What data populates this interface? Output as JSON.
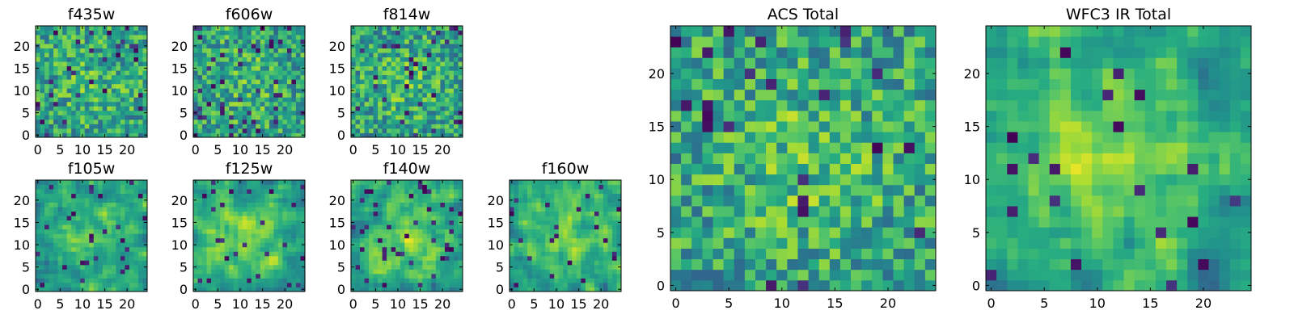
{
  "chart_data": [
    {
      "type": "heatmap",
      "title": "f435w",
      "rows": 25,
      "cols": 25,
      "seed": 11,
      "smooth": 0,
      "center_boost": 0.1,
      "dark_fraction": 0.05,
      "xticks": [
        "0",
        "5",
        "10",
        "15",
        "20"
      ],
      "yticks": [
        "0",
        "5",
        "10",
        "15",
        "20"
      ],
      "grid": false,
      "colormap": "viridis"
    },
    {
      "type": "heatmap",
      "title": "f606w",
      "rows": 25,
      "cols": 25,
      "seed": 23,
      "smooth": 0,
      "center_boost": 0.1,
      "dark_fraction": 0.06,
      "xticks": [
        "0",
        "5",
        "10",
        "15",
        "20"
      ],
      "yticks": [
        "0",
        "5",
        "10",
        "15",
        "20"
      ],
      "grid": false,
      "colormap": "viridis"
    },
    {
      "type": "heatmap",
      "title": "f814w",
      "rows": 25,
      "cols": 25,
      "seed": 37,
      "smooth": 0,
      "center_boost": 0.12,
      "dark_fraction": 0.05,
      "xticks": [
        "0",
        "5",
        "10",
        "15",
        "20"
      ],
      "yticks": [
        "0",
        "5",
        "10",
        "15",
        "20"
      ],
      "grid": false,
      "colormap": "viridis"
    },
    {
      "type": "heatmap",
      "title": "f105w",
      "rows": 25,
      "cols": 25,
      "seed": 41,
      "smooth": 1,
      "center_boost": 0.22,
      "dark_fraction": 0.05,
      "xticks": [
        "0",
        "5",
        "10",
        "15",
        "20"
      ],
      "yticks": [
        "0",
        "5",
        "10",
        "15",
        "20"
      ],
      "grid": false,
      "colormap": "viridis"
    },
    {
      "type": "heatmap",
      "title": "f125w",
      "rows": 25,
      "cols": 25,
      "seed": 53,
      "smooth": 1,
      "center_boost": 0.22,
      "dark_fraction": 0.05,
      "xticks": [
        "0",
        "5",
        "10",
        "15",
        "20"
      ],
      "yticks": [
        "0",
        "5",
        "10",
        "15",
        "20"
      ],
      "grid": false,
      "colormap": "viridis"
    },
    {
      "type": "heatmap",
      "title": "f140w",
      "rows": 25,
      "cols": 25,
      "seed": 67,
      "smooth": 1,
      "center_boost": 0.22,
      "dark_fraction": 0.05,
      "xticks": [
        "0",
        "5",
        "10",
        "15",
        "20"
      ],
      "yticks": [
        "0",
        "5",
        "10",
        "15",
        "20"
      ],
      "grid": false,
      "colormap": "viridis"
    },
    {
      "type": "heatmap",
      "title": "f160w",
      "rows": 25,
      "cols": 25,
      "seed": 79,
      "smooth": 1,
      "center_boost": 0.22,
      "dark_fraction": 0.05,
      "xticks": [
        "0",
        "5",
        "10",
        "15",
        "20"
      ],
      "yticks": [
        "0",
        "5",
        "10",
        "15",
        "20"
      ],
      "grid": false,
      "colormap": "viridis"
    },
    {
      "type": "heatmap",
      "title": "ACS Total",
      "rows": 25,
      "cols": 25,
      "seed": 97,
      "smooth": 0,
      "center_boost": 0.14,
      "dark_fraction": 0.04,
      "xticks": [
        "0",
        "5",
        "10",
        "15",
        "20"
      ],
      "yticks": [
        "0",
        "5",
        "10",
        "15",
        "20"
      ],
      "grid": false,
      "colormap": "viridis"
    },
    {
      "type": "heatmap",
      "title": "WFC3 IR Total",
      "rows": 25,
      "cols": 25,
      "seed": 131,
      "smooth": 1,
      "center_boost": 0.3,
      "dark_fraction": 0.04,
      "xticks": [
        "0",
        "5",
        "10",
        "15",
        "20"
      ],
      "yticks": [
        "0",
        "5",
        "10",
        "15",
        "20"
      ],
      "grid": false,
      "colormap": "viridis"
    }
  ]
}
